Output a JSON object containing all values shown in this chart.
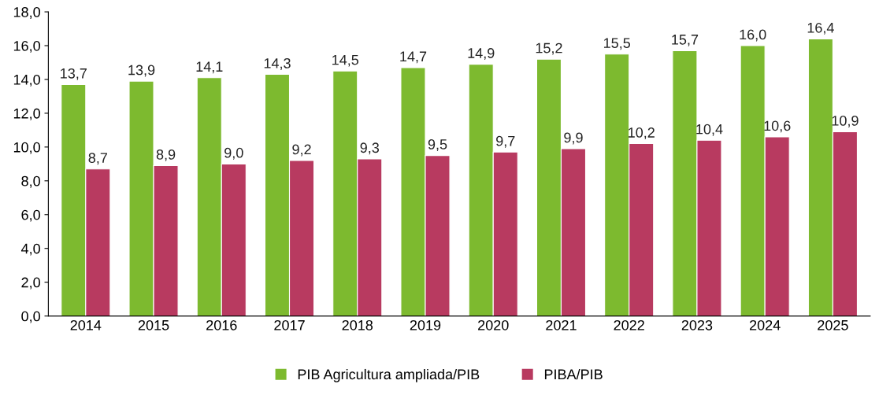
{
  "chart_data": {
    "type": "bar",
    "categories": [
      "2014",
      "2015",
      "2016",
      "2017",
      "2018",
      "2019",
      "2020",
      "2021",
      "2022",
      "2023",
      "2024",
      "2025"
    ],
    "series": [
      {
        "name": "PIB Agricultura ampliada/PIB",
        "color": "#7dba2f",
        "values": [
          13.7,
          13.9,
          14.1,
          14.3,
          14.5,
          14.7,
          14.9,
          15.2,
          15.5,
          15.7,
          16.0,
          16.4
        ],
        "value_labels": [
          "13,7",
          "13,9",
          "14,1",
          "14,3",
          "14,5",
          "14,7",
          "14,9",
          "15,2",
          "15,5",
          "15,7",
          "16,0",
          "16,4"
        ]
      },
      {
        "name": "PIBA/PIB",
        "color": "#b83a60",
        "values": [
          8.7,
          8.9,
          9.0,
          9.2,
          9.3,
          9.5,
          9.7,
          9.9,
          10.2,
          10.4,
          10.6,
          10.9
        ],
        "value_labels": [
          "8,7",
          "8,9",
          "9,0",
          "9,2",
          "9,3",
          "9,5",
          "9,7",
          "9,9",
          "10,2",
          "10,4",
          "10,6",
          "10,9"
        ]
      }
    ],
    "ylim": [
      0,
      18
    ],
    "yticks": [
      {
        "value": 0,
        "label": "0,0"
      },
      {
        "value": 2,
        "label": "2,0"
      },
      {
        "value": 4,
        "label": "4,0"
      },
      {
        "value": 6,
        "label": "6,0"
      },
      {
        "value": 8,
        "label": "8,0"
      },
      {
        "value": 10,
        "label": "10,0"
      },
      {
        "value": 12,
        "label": "12,0"
      },
      {
        "value": 14,
        "label": "14,0"
      },
      {
        "value": 16,
        "label": "16,0"
      },
      {
        "value": 18,
        "label": "18,0"
      }
    ],
    "grid": false,
    "legend": "bottom"
  }
}
